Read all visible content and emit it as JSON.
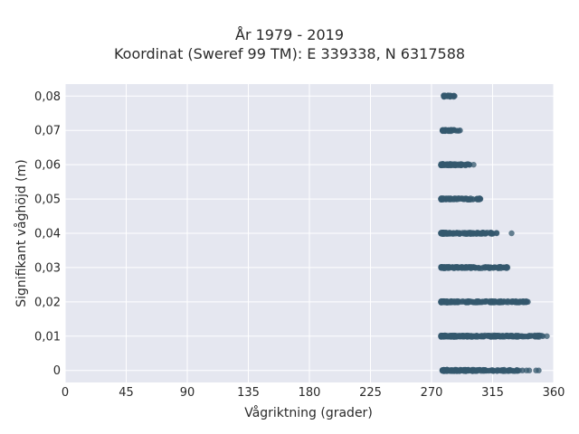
{
  "chart_data": {
    "type": "scatter",
    "title": "År 1979 - 2019",
    "subtitle": "Koordinat (Sweref 99 TM): E 339338, N 6317588",
    "xlabel": "Vågriktning (grader)",
    "ylabel": "Signifikant våghöjd (m)",
    "xlim": [
      0,
      360
    ],
    "ylim": [
      -0.0035,
      0.0835
    ],
    "x_ticks": [
      "0",
      "45",
      "90",
      "135",
      "180",
      "225",
      "270",
      "315",
      "360"
    ],
    "x_tick_values": [
      0,
      45,
      90,
      135,
      180,
      225,
      270,
      315,
      360
    ],
    "y_ticks": [
      "0",
      "0,01",
      "0,02",
      "0,03",
      "0,04",
      "0,05",
      "0,06",
      "0,07",
      "0,08"
    ],
    "y_tick_values": [
      0,
      0.01,
      0.02,
      0.03,
      0.04,
      0.05,
      0.06,
      0.07,
      0.08
    ],
    "grid": true,
    "background": "#e5e7f0",
    "marker_color": "#34586e",
    "bands": [
      {
        "y": 0.0,
        "x_min": 278,
        "x_max": 337,
        "outliers": [
          340,
          342,
          347,
          349
        ]
      },
      {
        "y": 0.01,
        "x_min": 277,
        "x_max": 352,
        "outliers": [
          355
        ]
      },
      {
        "y": 0.02,
        "x_min": 277,
        "x_max": 341,
        "outliers": []
      },
      {
        "y": 0.03,
        "x_min": 277,
        "x_max": 326,
        "outliers": []
      },
      {
        "y": 0.04,
        "x_min": 277,
        "x_max": 318,
        "outliers": [
          329
        ]
      },
      {
        "y": 0.05,
        "x_min": 277,
        "x_max": 306,
        "outliers": []
      },
      {
        "y": 0.06,
        "x_min": 277,
        "x_max": 298,
        "outliers": [
          301
        ]
      },
      {
        "y": 0.07,
        "x_min": 278,
        "x_max": 291,
        "outliers": []
      },
      {
        "y": 0.08,
        "x_min": 279,
        "x_max": 287,
        "outliers": []
      }
    ]
  }
}
